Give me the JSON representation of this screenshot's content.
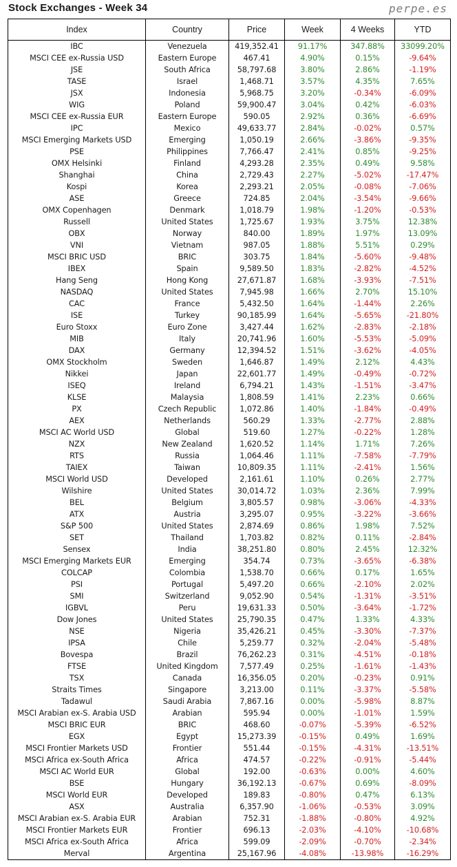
{
  "header": {
    "title": "Stock Exchanges - Week 34",
    "site": "perpe.es"
  },
  "colors": {
    "positive": "#2e8b2e",
    "negative": "#d42020"
  },
  "columns": [
    "Index",
    "Country",
    "Price",
    "Week",
    "4 Weeks",
    "YTD"
  ],
  "rows": [
    [
      "IBC",
      "Venezuela",
      "419,352.41",
      "91.17%",
      "347.88%",
      "33099.20%"
    ],
    [
      "MSCI CEE ex-Russia USD",
      "Eastern Europe",
      "467.41",
      "4.90%",
      "0.15%",
      "-9.64%"
    ],
    [
      "JSE",
      "South Africa",
      "58,797.68",
      "3.80%",
      "2.86%",
      "-1.19%"
    ],
    [
      "TASE",
      "Israel",
      "1,468.71",
      "3.57%",
      "4.35%",
      "7.65%"
    ],
    [
      "JSX",
      "Indonesia",
      "5,968.75",
      "3.20%",
      "-0.34%",
      "-6.09%"
    ],
    [
      "WIG",
      "Poland",
      "59,900.47",
      "3.04%",
      "0.42%",
      "-6.03%"
    ],
    [
      "MSCI CEE ex-Russia EUR",
      "Eastern Europe",
      "590.05",
      "2.92%",
      "0.36%",
      "-6.69%"
    ],
    [
      "IPC",
      "Mexico",
      "49,633.77",
      "2.84%",
      "-0.02%",
      "0.57%"
    ],
    [
      "MSCI Emerging Markets USD",
      "Emerging",
      "1,050.19",
      "2.66%",
      "-3.86%",
      "-9.35%"
    ],
    [
      "PSE",
      "Philippines",
      "7,766.47",
      "2.41%",
      "0.85%",
      "-9.25%"
    ],
    [
      "OMX Helsinki",
      "Finland",
      "4,293.28",
      "2.35%",
      "0.49%",
      "9.58%"
    ],
    [
      "Shanghai",
      "China",
      "2,729.43",
      "2.27%",
      "-5.02%",
      "-17.47%"
    ],
    [
      "Kospi",
      "Korea",
      "2,293.21",
      "2.05%",
      "-0.08%",
      "-7.06%"
    ],
    [
      "ASE",
      "Greece",
      "724.85",
      "2.04%",
      "-3.54%",
      "-9.66%"
    ],
    [
      "OMX Copenhagen",
      "Denmark",
      "1,018.79",
      "1.98%",
      "-1.20%",
      "-0.53%"
    ],
    [
      "Russell",
      "United States",
      "1,725.67",
      "1.93%",
      "3.75%",
      "12.38%"
    ],
    [
      "OBX",
      "Norway",
      "840.00",
      "1.89%",
      "1.97%",
      "13.09%"
    ],
    [
      "VNI",
      "Vietnam",
      "987.05",
      "1.88%",
      "5.51%",
      "0.29%"
    ],
    [
      "MSCI BRIC USD",
      "BRIC",
      "303.75",
      "1.84%",
      "-5.60%",
      "-9.48%"
    ],
    [
      "IBEX",
      "Spain",
      "9,589.50",
      "1.83%",
      "-2.82%",
      "-4.52%"
    ],
    [
      "Hang Seng",
      "Hong Kong",
      "27,671.87",
      "1.68%",
      "-3.93%",
      "-7.51%"
    ],
    [
      "NASDAQ",
      "United States",
      "7,945.98",
      "1.66%",
      "2.70%",
      "15.10%"
    ],
    [
      "CAC",
      "France",
      "5,432.50",
      "1.64%",
      "-1.44%",
      "2.26%"
    ],
    [
      "ISE",
      "Turkey",
      "90,185.99",
      "1.64%",
      "-5.65%",
      "-21.80%"
    ],
    [
      "Euro Stoxx",
      "Euro Zone",
      "3,427.44",
      "1.62%",
      "-2.83%",
      "-2.18%"
    ],
    [
      "MIB",
      "Italy",
      "20,741.96",
      "1.60%",
      "-5.53%",
      "-5.09%"
    ],
    [
      "DAX",
      "Germany",
      "12,394.52",
      "1.51%",
      "-3.62%",
      "-4.05%"
    ],
    [
      "OMX Stockholm",
      "Sweden",
      "1,646.87",
      "1.49%",
      "2.12%",
      "4.43%"
    ],
    [
      "Nikkei",
      "Japan",
      "22,601.77",
      "1.49%",
      "-0.49%",
      "-0.72%"
    ],
    [
      "ISEQ",
      "Ireland",
      "6,794.21",
      "1.43%",
      "-1.51%",
      "-3.47%"
    ],
    [
      "KLSE",
      "Malaysia",
      "1,808.59",
      "1.41%",
      "2.23%",
      "0.66%"
    ],
    [
      "PX",
      "Czech Republic",
      "1,072.86",
      "1.40%",
      "-1.84%",
      "-0.49%"
    ],
    [
      "AEX",
      "Netherlands",
      "560.29",
      "1.33%",
      "-2.77%",
      "2.88%"
    ],
    [
      "MSCI AC World USD",
      "Global",
      "519.60",
      "1.27%",
      "-0.22%",
      "1.28%"
    ],
    [
      "NZX",
      "New Zealand",
      "1,620.52",
      "1.14%",
      "1.71%",
      "7.26%"
    ],
    [
      "RTS",
      "Russia",
      "1,064.46",
      "1.11%",
      "-7.58%",
      "-7.79%"
    ],
    [
      "TAIEX",
      "Taiwan",
      "10,809.35",
      "1.11%",
      "-2.41%",
      "1.56%"
    ],
    [
      "MSCI World USD",
      "Developed",
      "2,161.61",
      "1.10%",
      "0.26%",
      "2.77%"
    ],
    [
      "Wilshire",
      "United States",
      "30,014.72",
      "1.03%",
      "2.36%",
      "7.99%"
    ],
    [
      "BEL",
      "Belgium",
      "3,805.57",
      "0.98%",
      "-3.06%",
      "-4.33%"
    ],
    [
      "ATX",
      "Austria",
      "3,295.07",
      "0.95%",
      "-3.22%",
      "-3.66%"
    ],
    [
      "S&P 500",
      "United States",
      "2,874.69",
      "0.86%",
      "1.98%",
      "7.52%"
    ],
    [
      "SET",
      "Thailand",
      "1,703.82",
      "0.82%",
      "0.11%",
      "-2.84%"
    ],
    [
      "Sensex",
      "India",
      "38,251.80",
      "0.80%",
      "2.45%",
      "12.32%"
    ],
    [
      "MSCI Emerging Markets EUR",
      "Emerging",
      "354.74",
      "0.73%",
      "-3.65%",
      "-6.38%"
    ],
    [
      "COLCAP",
      "Colombia",
      "1,538.70",
      "0.66%",
      "0.17%",
      "1.65%"
    ],
    [
      "PSI",
      "Portugal",
      "5,497.20",
      "0.66%",
      "-2.10%",
      "2.02%"
    ],
    [
      "SMI",
      "Switzerland",
      "9,052.90",
      "0.54%",
      "-1.31%",
      "-3.51%"
    ],
    [
      "IGBVL",
      "Peru",
      "19,631.33",
      "0.50%",
      "-3.64%",
      "-1.72%"
    ],
    [
      "Dow Jones",
      "United States",
      "25,790.35",
      "0.47%",
      "1.33%",
      "4.33%"
    ],
    [
      "NSE",
      "Nigeria",
      "35,426.21",
      "0.45%",
      "-3.30%",
      "-7.37%"
    ],
    [
      "IPSA",
      "Chile",
      "5,259.77",
      "0.32%",
      "-2.04%",
      "-5.48%"
    ],
    [
      "Bovespa",
      "Brazil",
      "76,262.23",
      "0.31%",
      "-4.51%",
      "-0.18%"
    ],
    [
      "FTSE",
      "United Kingdom",
      "7,577.49",
      "0.25%",
      "-1.61%",
      "-1.43%"
    ],
    [
      "TSX",
      "Canada",
      "16,356.05",
      "0.20%",
      "-0.23%",
      "0.91%"
    ],
    [
      "Straits Times",
      "Singapore",
      "3,213.00",
      "0.11%",
      "-3.37%",
      "-5.58%"
    ],
    [
      "Tadawul",
      "Saudi Arabia",
      "7,867.16",
      "0.00%",
      "-5.98%",
      "8.87%"
    ],
    [
      "MSCI Arabian ex-S. Arabia USD",
      "Arabian",
      "595.94",
      "0.00%",
      "-1.01%",
      "1.59%"
    ],
    [
      "MSCI BRIC EUR",
      "BRIC",
      "468.60",
      "-0.07%",
      "-5.39%",
      "-6.52%"
    ],
    [
      "EGX",
      "Egypt",
      "15,273.39",
      "-0.15%",
      "0.49%",
      "1.69%"
    ],
    [
      "MSCI Frontier Markets USD",
      "Frontier",
      "551.44",
      "-0.15%",
      "-4.31%",
      "-13.51%"
    ],
    [
      "MSCI Africa ex-South Africa",
      "Africa",
      "474.57",
      "-0.22%",
      "-0.91%",
      "-5.44%"
    ],
    [
      "MSCI AC World EUR",
      "Global",
      "192.00",
      "-0.63%",
      "0.00%",
      "4.60%"
    ],
    [
      "BSE",
      "Hungary",
      "36,192.13",
      "-0.67%",
      "0.69%",
      "-8.09%"
    ],
    [
      "MSCI World EUR",
      "Developed",
      "189.83",
      "-0.80%",
      "0.47%",
      "6.13%"
    ],
    [
      "ASX",
      "Australia",
      "6,357.90",
      "-1.06%",
      "-0.53%",
      "3.09%"
    ],
    [
      "MSCI Arabian ex-S. Arabia EUR",
      "Arabian",
      "752.31",
      "-1.88%",
      "-0.80%",
      "4.92%"
    ],
    [
      "MSCI Frontier Markets EUR",
      "Frontier",
      "696.13",
      "-2.03%",
      "-4.10%",
      "-10.68%"
    ],
    [
      "MSCI Africa ex-South Africa",
      "Africa",
      "599.09",
      "-2.09%",
      "-0.70%",
      "-2.34%"
    ],
    [
      "Merval",
      "Argentina",
      "25,167.96",
      "-4.08%",
      "-13.98%",
      "-16.29%"
    ]
  ]
}
